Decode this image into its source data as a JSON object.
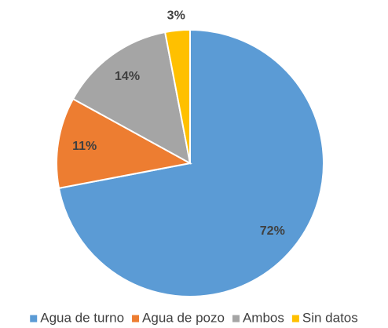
{
  "chart_data": {
    "type": "pie",
    "categories": [
      "Agua de turno",
      "Agua de pozo",
      "Ambos",
      "Sin datos"
    ],
    "values": [
      72,
      11,
      14,
      3
    ],
    "value_labels": [
      "72%",
      "11%",
      "14%",
      "3%"
    ],
    "colors": [
      "#5b9bd5",
      "#ed7d31",
      "#a5a5a5",
      "#ffc000"
    ],
    "legend": "bottom"
  }
}
